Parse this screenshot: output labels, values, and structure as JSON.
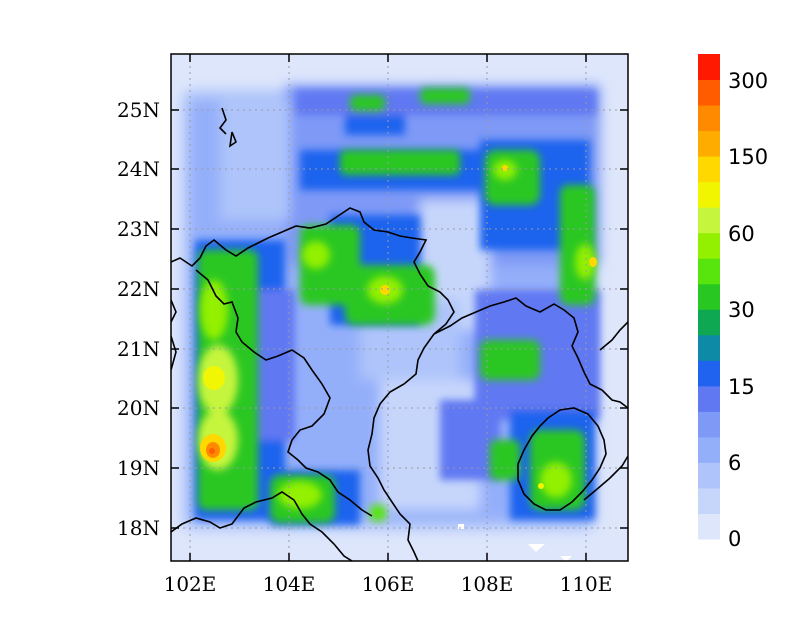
{
  "chart_data": {
    "type": "heatmap",
    "title": "",
    "x_axis": {
      "ticks": [
        "102E",
        "104E",
        "106E",
        "108E",
        "110E"
      ],
      "lon_values": [
        102,
        104,
        106,
        108,
        110
      ],
      "range": [
        101.7,
        110.85
      ]
    },
    "y_axis": {
      "ticks": [
        "18N",
        "19N",
        "20N",
        "21N",
        "22N",
        "23N",
        "24N",
        "25N"
      ],
      "lat_values": [
        18,
        19,
        20,
        21,
        22,
        23,
        24,
        25
      ],
      "range": [
        17.4,
        25.95
      ]
    },
    "grid": true,
    "colorbar": {
      "labels": [
        "0",
        "6",
        "15",
        "30",
        "60",
        "150",
        "300"
      ],
      "bands": [
        "#dde6fb",
        "#c6d6fb",
        "#aec4fa",
        "#94affa",
        "#7e99f6",
        "#6078f2",
        "#1f63ee",
        "#0e89a6",
        "#0fa852",
        "#29c721",
        "#58e50d",
        "#92f000",
        "#c6f53d",
        "#f2f500",
        "#ffd800",
        "#ffac00",
        "#ff8a00",
        "#ff5c00",
        "#ff1900"
      ],
      "placement": "right"
    },
    "hotspots": [
      {
        "lon": 102.6,
        "lat": 19.25,
        "level": 17
      },
      {
        "lon": 102.7,
        "lat": 20.55,
        "level": 14
      },
      {
        "lon": 102.5,
        "lat": 21.6,
        "level": 13
      },
      {
        "lon": 105.9,
        "lat": 22.0,
        "level": 13
      },
      {
        "lon": 110.1,
        "lat": 22.45,
        "level": 14
      },
      {
        "lon": 108.5,
        "lat": 24.0,
        "level": 12
      },
      {
        "lon": 109.0,
        "lat": 18.7,
        "level": 13
      }
    ]
  }
}
